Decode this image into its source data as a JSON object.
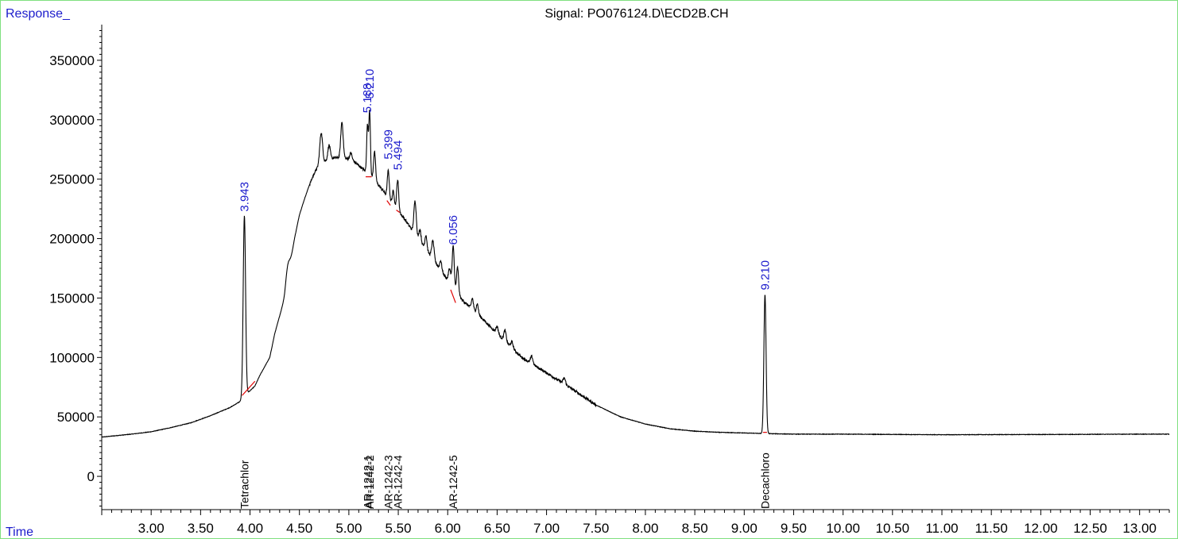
{
  "chart_data": {
    "type": "line",
    "title": "Signal: PO076124.D\\ECD2B.CH",
    "ylabel": "Response_",
    "xlabel": "Time",
    "xlim": [
      2.5,
      13.3
    ],
    "ylim": [
      -28000,
      380000
    ],
    "grid": false,
    "x_ticks": [
      {
        "v": 3.0,
        "t": "3.00"
      },
      {
        "v": 3.5,
        "t": "3.50"
      },
      {
        "v": 4.0,
        "t": "4.00"
      },
      {
        "v": 4.5,
        "t": "4.50"
      },
      {
        "v": 5.0,
        "t": "5.00"
      },
      {
        "v": 5.5,
        "t": "5.50"
      },
      {
        "v": 6.0,
        "t": "6.00"
      },
      {
        "v": 6.5,
        "t": "6.50"
      },
      {
        "v": 7.0,
        "t": "7.00"
      },
      {
        "v": 7.5,
        "t": "7.50"
      },
      {
        "v": 8.0,
        "t": "8.00"
      },
      {
        "v": 8.5,
        "t": "8.50"
      },
      {
        "v": 9.0,
        "t": "9.00"
      },
      {
        "v": 9.5,
        "t": "9.50"
      },
      {
        "v": 10.0,
        "t": "10.00"
      },
      {
        "v": 10.5,
        "t": "10.50"
      },
      {
        "v": 11.0,
        "t": "11.00"
      },
      {
        "v": 11.5,
        "t": "11.50"
      },
      {
        "v": 12.0,
        "t": "12.00"
      },
      {
        "v": 12.5,
        "t": "12.50"
      },
      {
        "v": 13.0,
        "t": "13.00"
      }
    ],
    "y_ticks": [
      {
        "v": 0,
        "t": "0"
      },
      {
        "v": 50000,
        "t": "50000"
      },
      {
        "v": 100000,
        "t": "100000"
      },
      {
        "v": 150000,
        "t": "150000"
      },
      {
        "v": 200000,
        "t": "200000"
      },
      {
        "v": 250000,
        "t": "250000"
      },
      {
        "v": 300000,
        "t": "300000"
      },
      {
        "v": 350000,
        "t": "350000"
      }
    ],
    "baseline_points": [
      [
        2.5,
        33000
      ],
      [
        2.8,
        35500
      ],
      [
        3.0,
        37500
      ],
      [
        3.2,
        41000
      ],
      [
        3.4,
        45000
      ],
      [
        3.6,
        51000
      ],
      [
        3.8,
        58000
      ],
      [
        3.9,
        63000
      ],
      [
        3.95,
        68000
      ],
      [
        4.05,
        76000
      ],
      [
        4.1,
        85000
      ],
      [
        4.2,
        100000
      ],
      [
        4.25,
        120000
      ],
      [
        4.3,
        135000
      ],
      [
        4.35,
        150000
      ],
      [
        4.4,
        175000
      ],
      [
        4.45,
        200000
      ],
      [
        4.5,
        220000
      ],
      [
        4.55,
        233000
      ],
      [
        4.6,
        245000
      ],
      [
        4.65,
        255000
      ],
      [
        4.7,
        262000
      ],
      [
        4.78,
        266000
      ],
      [
        4.85,
        268000
      ],
      [
        4.95,
        268000
      ],
      [
        5.05,
        265000
      ],
      [
        5.15,
        258000
      ],
      [
        5.25,
        250000
      ],
      [
        5.35,
        240000
      ],
      [
        5.45,
        228000
      ],
      [
        5.55,
        218000
      ],
      [
        5.7,
        200000
      ],
      [
        5.85,
        183000
      ],
      [
        6.0,
        165000
      ],
      [
        6.15,
        148000
      ],
      [
        6.3,
        137000
      ],
      [
        6.5,
        120000
      ],
      [
        6.75,
        100000
      ],
      [
        7.0,
        87000
      ],
      [
        7.25,
        74000
      ],
      [
        7.5,
        60000
      ],
      [
        7.75,
        50000
      ],
      [
        8.0,
        44000
      ],
      [
        8.25,
        40000
      ],
      [
        8.5,
        38000
      ],
      [
        8.75,
        37000
      ],
      [
        9.0,
        36500
      ],
      [
        9.2,
        36000
      ],
      [
        9.5,
        35500
      ],
      [
        10.0,
        35500
      ],
      [
        11.0,
        35000
      ],
      [
        12.0,
        35200
      ],
      [
        13.0,
        35500
      ],
      [
        13.3,
        35500
      ]
    ],
    "peaks": [
      {
        "x": 3.943,
        "h": 152000,
        "w": 0.012
      },
      {
        "x": 4.38,
        "h": 12000,
        "w": 0.02
      },
      {
        "x": 4.72,
        "h": 26000,
        "w": 0.014
      },
      {
        "x": 4.8,
        "h": 12000,
        "w": 0.012
      },
      {
        "x": 4.93,
        "h": 30000,
        "w": 0.012
      },
      {
        "x": 5.02,
        "h": 6000,
        "w": 0.012
      },
      {
        "x": 5.188,
        "h": 40000,
        "w": 0.008
      },
      {
        "x": 5.21,
        "h": 55000,
        "w": 0.008
      },
      {
        "x": 5.26,
        "h": 24000,
        "w": 0.01
      },
      {
        "x": 5.399,
        "h": 23000,
        "w": 0.01
      },
      {
        "x": 5.45,
        "h": 12000,
        "w": 0.01
      },
      {
        "x": 5.494,
        "h": 26000,
        "w": 0.01
      },
      {
        "x": 5.67,
        "h": 28000,
        "w": 0.012
      },
      {
        "x": 5.72,
        "h": 10000,
        "w": 0.01
      },
      {
        "x": 5.78,
        "h": 12000,
        "w": 0.01
      },
      {
        "x": 5.85,
        "h": 15000,
        "w": 0.012
      },
      {
        "x": 5.93,
        "h": 8000,
        "w": 0.01
      },
      {
        "x": 6.02,
        "h": 12000,
        "w": 0.012
      },
      {
        "x": 6.056,
        "h": 35000,
        "w": 0.01
      },
      {
        "x": 6.1,
        "h": 22000,
        "w": 0.01
      },
      {
        "x": 6.25,
        "h": 9000,
        "w": 0.01
      },
      {
        "x": 6.3,
        "h": 8000,
        "w": 0.01
      },
      {
        "x": 6.5,
        "h": 6000,
        "w": 0.012
      },
      {
        "x": 6.58,
        "h": 9000,
        "w": 0.012
      },
      {
        "x": 6.65,
        "h": 5000,
        "w": 0.012
      },
      {
        "x": 6.85,
        "h": 6000,
        "w": 0.012
      },
      {
        "x": 7.18,
        "h": 5000,
        "w": 0.012
      },
      {
        "x": 9.21,
        "h": 117000,
        "w": 0.011
      }
    ],
    "peak_labels": [
      {
        "x": 3.943,
        "label": "3.943",
        "y": 220000
      },
      {
        "x": 5.188,
        "label": "5.188",
        "y": 303000
      },
      {
        "x": 5.21,
        "label": "5.210",
        "y": 315000
      },
      {
        "x": 5.399,
        "label": "5.399",
        "y": 264000
      },
      {
        "x": 5.494,
        "label": "5.494",
        "y": 255000
      },
      {
        "x": 6.056,
        "label": "6.056",
        "y": 192000
      },
      {
        "x": 9.21,
        "label": "9.210",
        "y": 154000
      }
    ],
    "compound_labels": [
      {
        "x": 3.943,
        "label": "Tetrachlor"
      },
      {
        "x": 5.188,
        "label": "AR-1242-1"
      },
      {
        "x": 5.21,
        "label": "AR-1242-2"
      },
      {
        "x": 5.399,
        "label": "AR-1242-3"
      },
      {
        "x": 5.494,
        "label": "AR-1242-4"
      },
      {
        "x": 6.056,
        "label": "AR-1242-5"
      },
      {
        "x": 9.21,
        "label": "Decachloro"
      }
    ],
    "integration_baselines": [
      {
        "x1": 3.92,
        "y1": 68000,
        "x2": 4.05,
        "y2": 80000
      },
      {
        "x1": 5.17,
        "y1": 252000,
        "x2": 5.23,
        "y2": 252000
      },
      {
        "x1": 5.385,
        "y1": 232000,
        "x2": 5.42,
        "y2": 228000
      },
      {
        "x1": 5.48,
        "y1": 224000,
        "x2": 5.515,
        "y2": 222000
      },
      {
        "x1": 6.03,
        "y1": 157000,
        "x2": 6.08,
        "y2": 146000
      },
      {
        "x1": 9.19,
        "y1": 37000,
        "x2": 9.23,
        "y2": 37000
      }
    ],
    "colors": {
      "trace": "#000000",
      "label_blue": "#1c1ccc",
      "integration": "#e00000",
      "frame": "#7fe07f"
    }
  }
}
